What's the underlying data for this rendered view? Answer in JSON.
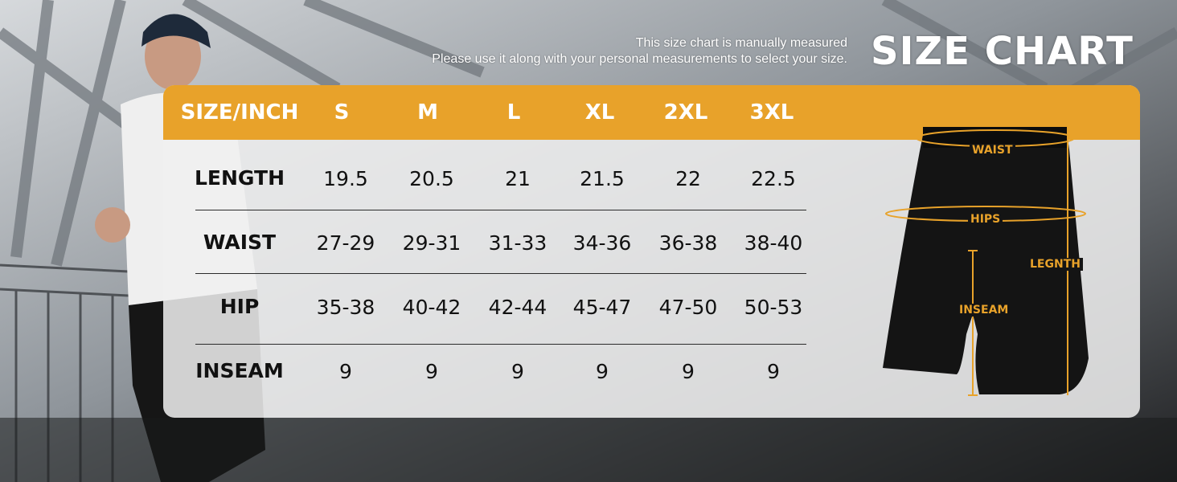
{
  "header": {
    "note_line1": "This size chart is manually measured",
    "note_line2": "Please use it along with your personal measurements to select your size.",
    "title": "SIZE CHART"
  },
  "table": {
    "corner_label": "SIZE/INCH",
    "sizes": [
      "S",
      "M",
      "L",
      "XL",
      "2XL",
      "3XL"
    ],
    "rows": [
      {
        "label": "LENGTH",
        "values": [
          "19.5",
          "20.5",
          "21",
          "21.5",
          "22",
          "22.5"
        ]
      },
      {
        "label": "WAIST",
        "values": [
          "27-29",
          "29-31",
          "31-33",
          "34-36",
          "36-38",
          "38-40"
        ]
      },
      {
        "label": "HIP",
        "values": [
          "35-38",
          "40-42",
          "42-44",
          "45-47",
          "47-50",
          "50-53"
        ]
      },
      {
        "label": "INSEAM",
        "values": [
          "9",
          "9",
          "9",
          "9",
          "9",
          "9"
        ]
      }
    ]
  },
  "diagram": {
    "waist": "WAIST",
    "hips": "HIPS",
    "length": "LEGNTH",
    "inseam": "INSEAM"
  },
  "colors": {
    "accent": "#e8a22a",
    "text": "#111111",
    "shorts": "#141414"
  },
  "icons": {
    "shorts": "shorts-illustration"
  }
}
